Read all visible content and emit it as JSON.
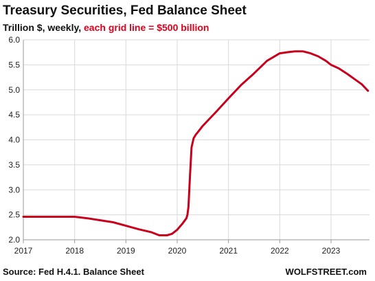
{
  "header": {
    "title": "Treasury Securities, Fed Balance Sheet",
    "subtitle_plain": "Trillion $, weekly, ",
    "subtitle_accent": "each grid line = $500 billion"
  },
  "footer": {
    "source": "Source: Fed H.4.1. Balance Sheet",
    "brand": "WOLFSTREET.com"
  },
  "colors": {
    "line": "#c8001c",
    "accent_text": "#e0001b",
    "grid": "#d9d9d9",
    "axis": "#9a9a9a"
  },
  "chart_data": {
    "type": "line",
    "title": "Treasury Securities, Fed Balance Sheet",
    "xlabel": "",
    "ylabel": "",
    "xlim": [
      2017.0,
      2023.75
    ],
    "ylim": [
      2.0,
      6.0
    ],
    "grid": true,
    "legend": "none",
    "x_ticks": [
      2017,
      2018,
      2019,
      2020,
      2021,
      2022,
      2023
    ],
    "y_ticks": [
      2.0,
      2.5,
      3.0,
      3.5,
      4.0,
      4.5,
      5.0,
      5.5,
      6.0
    ],
    "x_tick_labels": [
      "2017",
      "2018",
      "2019",
      "2020",
      "2021",
      "2022",
      "2023"
    ],
    "y_tick_labels": [
      "2.0",
      "2.5",
      "3.0",
      "3.5",
      "4.0",
      "4.5",
      "5.0",
      "5.5",
      "6.0"
    ],
    "series": [
      {
        "x": [
          2017.0,
          2017.3,
          2017.6,
          2017.8,
          2018.0,
          2018.25,
          2018.5,
          2018.75,
          2019.0,
          2019.25,
          2019.5,
          2019.65,
          2019.8,
          2019.9,
          2020.0,
          2020.1,
          2020.18,
          2020.2,
          2020.22,
          2020.25,
          2020.28,
          2020.32,
          2020.36,
          2020.4,
          2020.5,
          2020.75,
          2021.0,
          2021.25,
          2021.5,
          2021.75,
          2022.0,
          2022.2,
          2022.3,
          2022.45,
          2022.6,
          2022.75,
          2022.9,
          2023.0,
          2023.15,
          2023.3,
          2023.45,
          2023.6,
          2023.72
        ],
        "values": [
          2.46,
          2.46,
          2.46,
          2.46,
          2.46,
          2.43,
          2.39,
          2.35,
          2.28,
          2.21,
          2.15,
          2.09,
          2.09,
          2.12,
          2.2,
          2.32,
          2.43,
          2.5,
          2.66,
          3.3,
          3.85,
          4.03,
          4.1,
          4.15,
          4.28,
          4.55,
          4.83,
          5.1,
          5.33,
          5.58,
          5.73,
          5.76,
          5.77,
          5.77,
          5.73,
          5.67,
          5.58,
          5.5,
          5.43,
          5.33,
          5.22,
          5.11,
          4.98
        ]
      }
    ]
  }
}
